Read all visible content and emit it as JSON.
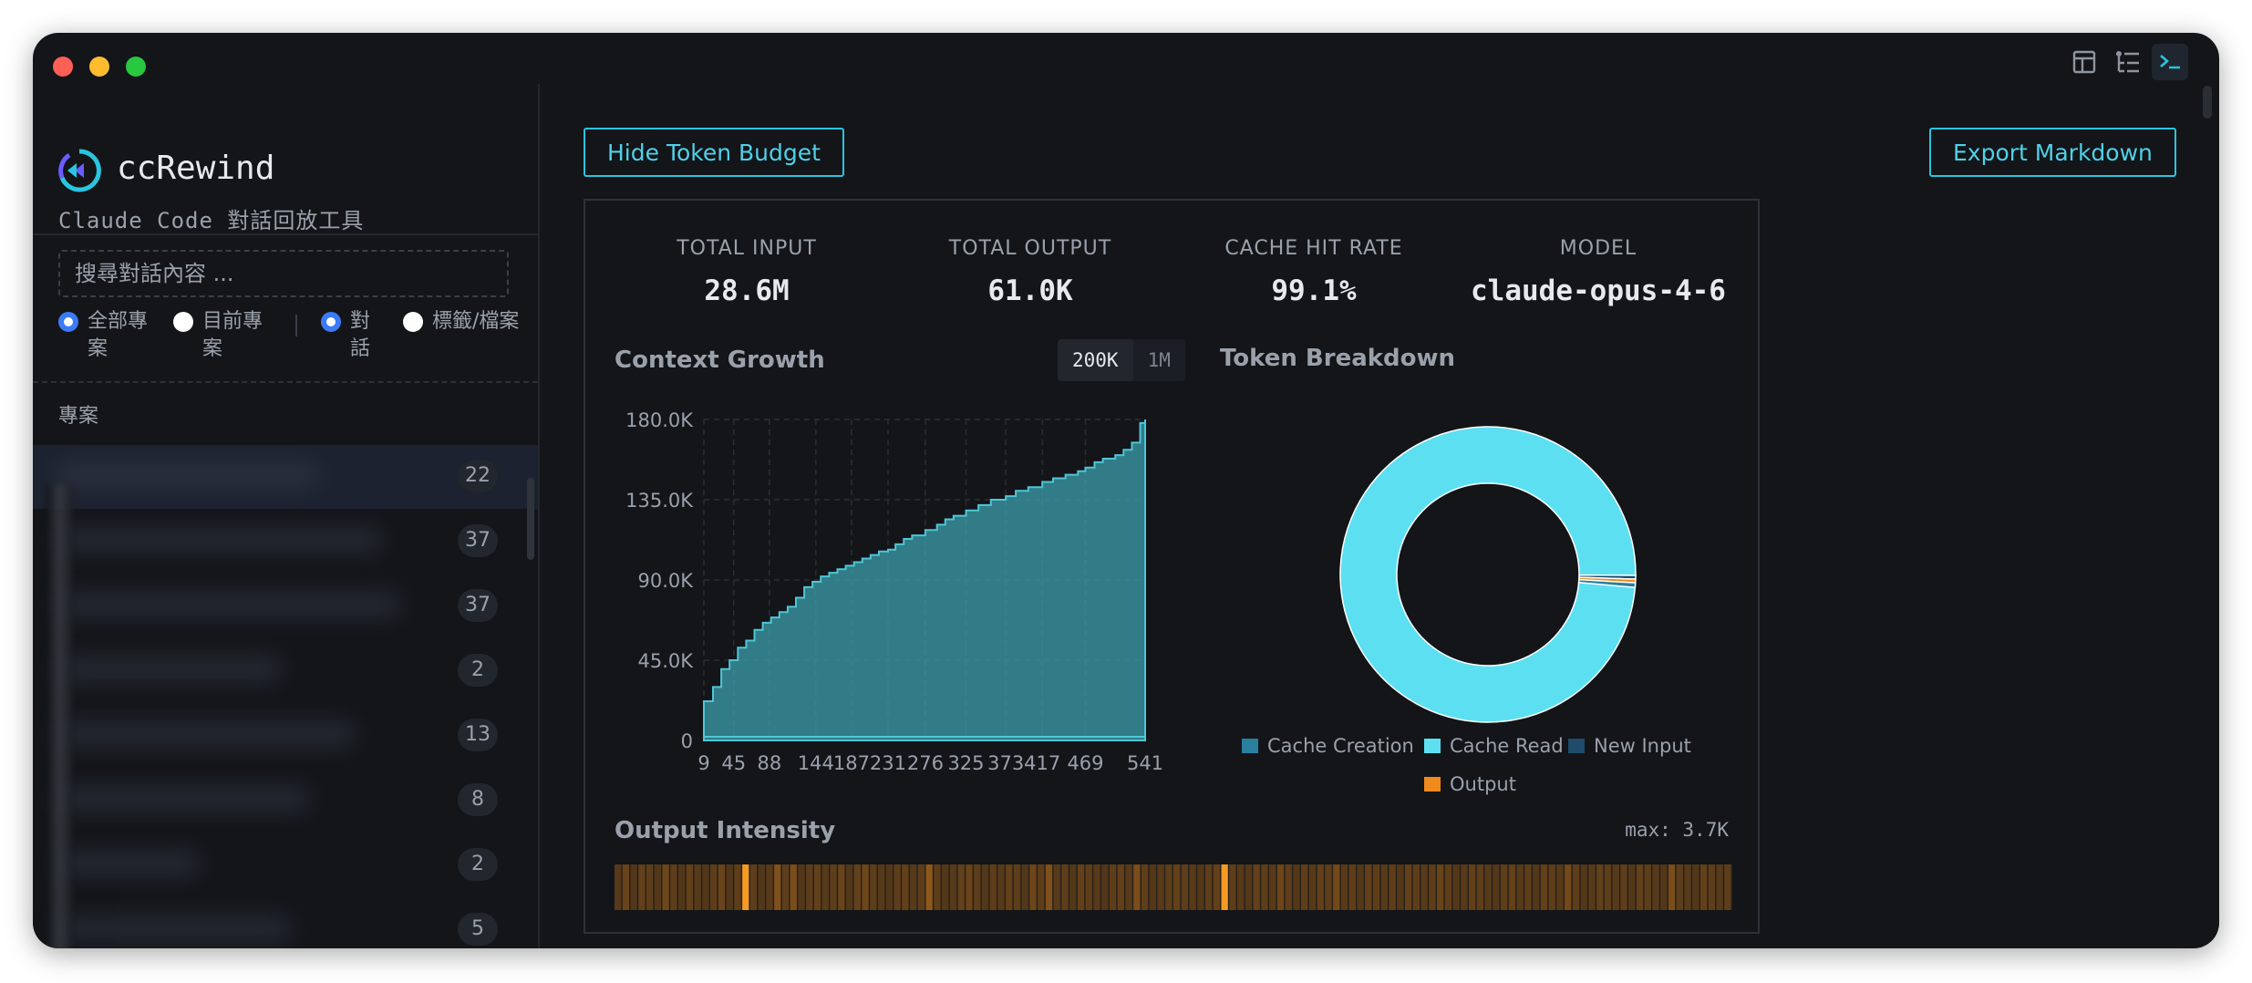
{
  "app": {
    "name": "ccRewind",
    "subtitle": "Claude Code 對話回放工具",
    "brand_color": "#29c5e0"
  },
  "titlebar": {
    "icons": [
      "panel-layout-icon",
      "tree-list-icon",
      "terminal-icon"
    ],
    "active_icon": "terminal-icon"
  },
  "sidebar": {
    "search_placeholder": "搜尋對話內容 ...",
    "scope_filters": [
      {
        "label": "全部專案",
        "checked": true
      },
      {
        "label": "目前專案",
        "checked": false
      }
    ],
    "type_filters": [
      {
        "label": "對話",
        "checked": true
      },
      {
        "label": "標籤/檔案",
        "checked": false
      }
    ],
    "section_label": "專案",
    "projects": [
      {
        "count": "22",
        "selected": true
      },
      {
        "count": "37",
        "selected": false
      },
      {
        "count": "37",
        "selected": false
      },
      {
        "count": "2",
        "selected": false
      },
      {
        "count": "13",
        "selected": false
      },
      {
        "count": "8",
        "selected": false
      },
      {
        "count": "2",
        "selected": false
      },
      {
        "count": "5",
        "selected": false
      }
    ]
  },
  "toolbar": {
    "hide_budget_label": "Hide Token Budget",
    "export_label": "Export Markdown"
  },
  "stats": [
    {
      "label": "TOTAL INPUT",
      "value": "28.6M"
    },
    {
      "label": "TOTAL OUTPUT",
      "value": "61.0K"
    },
    {
      "label": "CACHE HIT RATE",
      "value": "99.1%"
    },
    {
      "label": "MODEL",
      "value": "claude-opus-4-6"
    }
  ],
  "context_growth": {
    "title": "Context Growth",
    "toggle": [
      {
        "label": "200K",
        "active": true
      },
      {
        "label": "1M",
        "active": false
      }
    ]
  },
  "token_breakdown": {
    "title": "Token Breakdown"
  },
  "output_intensity": {
    "title": "Output Intensity",
    "max_label": "max: 3.7K"
  },
  "chart_data": [
    {
      "type": "area",
      "title": "Context Growth",
      "y_ticks": [
        "0",
        "45.0K",
        "90.0K",
        "135.0K",
        "180.0K"
      ],
      "x_ticks": [
        "9",
        "45",
        "88",
        "144",
        "187",
        "231",
        "276",
        "325",
        "373",
        "417",
        "469",
        "541"
      ],
      "ylim": [
        0,
        180000
      ],
      "grid": true,
      "color": "#3a9aa6",
      "series": [
        {
          "values": [
            {
              "x": 9,
              "y": 22000
            },
            {
              "x": 20,
              "y": 30000
            },
            {
              "x": 30,
              "y": 40000
            },
            {
              "x": 40,
              "y": 45000
            },
            {
              "x": 50,
              "y": 52000
            },
            {
              "x": 60,
              "y": 56000
            },
            {
              "x": 70,
              "y": 62000
            },
            {
              "x": 80,
              "y": 66000
            },
            {
              "x": 90,
              "y": 69000
            },
            {
              "x": 100,
              "y": 72000
            },
            {
              "x": 110,
              "y": 75000
            },
            {
              "x": 120,
              "y": 80000
            },
            {
              "x": 130,
              "y": 86000
            },
            {
              "x": 140,
              "y": 89000
            },
            {
              "x": 150,
              "y": 92000
            },
            {
              "x": 160,
              "y": 94000
            },
            {
              "x": 170,
              "y": 96000
            },
            {
              "x": 180,
              "y": 98000
            },
            {
              "x": 190,
              "y": 100000
            },
            {
              "x": 200,
              "y": 102000
            },
            {
              "x": 210,
              "y": 104000
            },
            {
              "x": 220,
              "y": 106000
            },
            {
              "x": 231,
              "y": 107000
            },
            {
              "x": 240,
              "y": 110000
            },
            {
              "x": 250,
              "y": 113000
            },
            {
              "x": 260,
              "y": 115000
            },
            {
              "x": 276,
              "y": 118000
            },
            {
              "x": 290,
              "y": 121000
            },
            {
              "x": 300,
              "y": 124000
            },
            {
              "x": 310,
              "y": 126000
            },
            {
              "x": 325,
              "y": 129000
            },
            {
              "x": 340,
              "y": 132000
            },
            {
              "x": 355,
              "y": 135000
            },
            {
              "x": 373,
              "y": 137000
            },
            {
              "x": 385,
              "y": 140000
            },
            {
              "x": 400,
              "y": 142000
            },
            {
              "x": 417,
              "y": 145000
            },
            {
              "x": 430,
              "y": 147000
            },
            {
              "x": 445,
              "y": 149000
            },
            {
              "x": 460,
              "y": 151000
            },
            {
              "x": 469,
              "y": 153000
            },
            {
              "x": 480,
              "y": 156000
            },
            {
              "x": 490,
              "y": 158000
            },
            {
              "x": 505,
              "y": 160000
            },
            {
              "x": 515,
              "y": 163000
            },
            {
              "x": 525,
              "y": 167000
            },
            {
              "x": 535,
              "y": 178000
            },
            {
              "x": 541,
              "y": 180000
            }
          ]
        }
      ]
    },
    {
      "type": "pie",
      "title": "Token Breakdown",
      "donut": true,
      "slices": [
        {
          "label": "Cache Creation",
          "value": 0.5,
          "color": "#2a7f9e"
        },
        {
          "label": "Cache Read",
          "value": 99.1,
          "color": "#5ddff2"
        },
        {
          "label": "New Input",
          "value": 0.2,
          "color": "#1e4c6a"
        },
        {
          "label": "Output",
          "value": 0.2,
          "color": "#f08a1c"
        }
      ],
      "legend_placement": "bottom"
    },
    {
      "type": "heatmap",
      "title": "Output Intensity",
      "max": "3.7K",
      "values": [
        0.25,
        0.4,
        0.2,
        0.35,
        0.3,
        0.2,
        0.45,
        0.3,
        0.2,
        0.35,
        0.25,
        0.2,
        0.3,
        0.4,
        0.2,
        0.3,
        0.9,
        0.3,
        0.2,
        0.25,
        0.6,
        0.3,
        0.55,
        0.2,
        0.3,
        0.35,
        0.25,
        0.3,
        0.4,
        0.2,
        0.35,
        0.45,
        0.3,
        0.25,
        0.2,
        0.3,
        0.35,
        0.25,
        0.3,
        0.75,
        0.3,
        0.2,
        0.25,
        0.35,
        0.4,
        0.3,
        0.2,
        0.3,
        0.25,
        0.35,
        0.3,
        0.2,
        0.45,
        0.3,
        0.6,
        0.25,
        0.3,
        0.2,
        0.35,
        0.3,
        0.25,
        0.2,
        0.3,
        0.35,
        0.25,
        0.55,
        0.3,
        0.2,
        0.25,
        0.3,
        0.35,
        0.3,
        0.25,
        0.2,
        0.3,
        0.35,
        1.0,
        0.3,
        0.25,
        0.2,
        0.35,
        0.3,
        0.25,
        0.45,
        0.3,
        0.2,
        0.3,
        0.25,
        0.35,
        0.3,
        0.5,
        0.25,
        0.3,
        0.2,
        0.35,
        0.3,
        0.25,
        0.3,
        0.2,
        0.35,
        0.3,
        0.25,
        0.3,
        0.4,
        0.3,
        0.2,
        0.25,
        0.35,
        0.3,
        0.25,
        0.2,
        0.3,
        0.35,
        0.25,
        0.3,
        0.2,
        0.35,
        0.3,
        0.25,
        0.5,
        0.3,
        0.2,
        0.25,
        0.35,
        0.3,
        0.25,
        0.3,
        0.2,
        0.35,
        0.3,
        0.25,
        0.2,
        0.55,
        0.3,
        0.25,
        0.2,
        0.35,
        0.3,
        0.25,
        0.3
      ]
    }
  ]
}
